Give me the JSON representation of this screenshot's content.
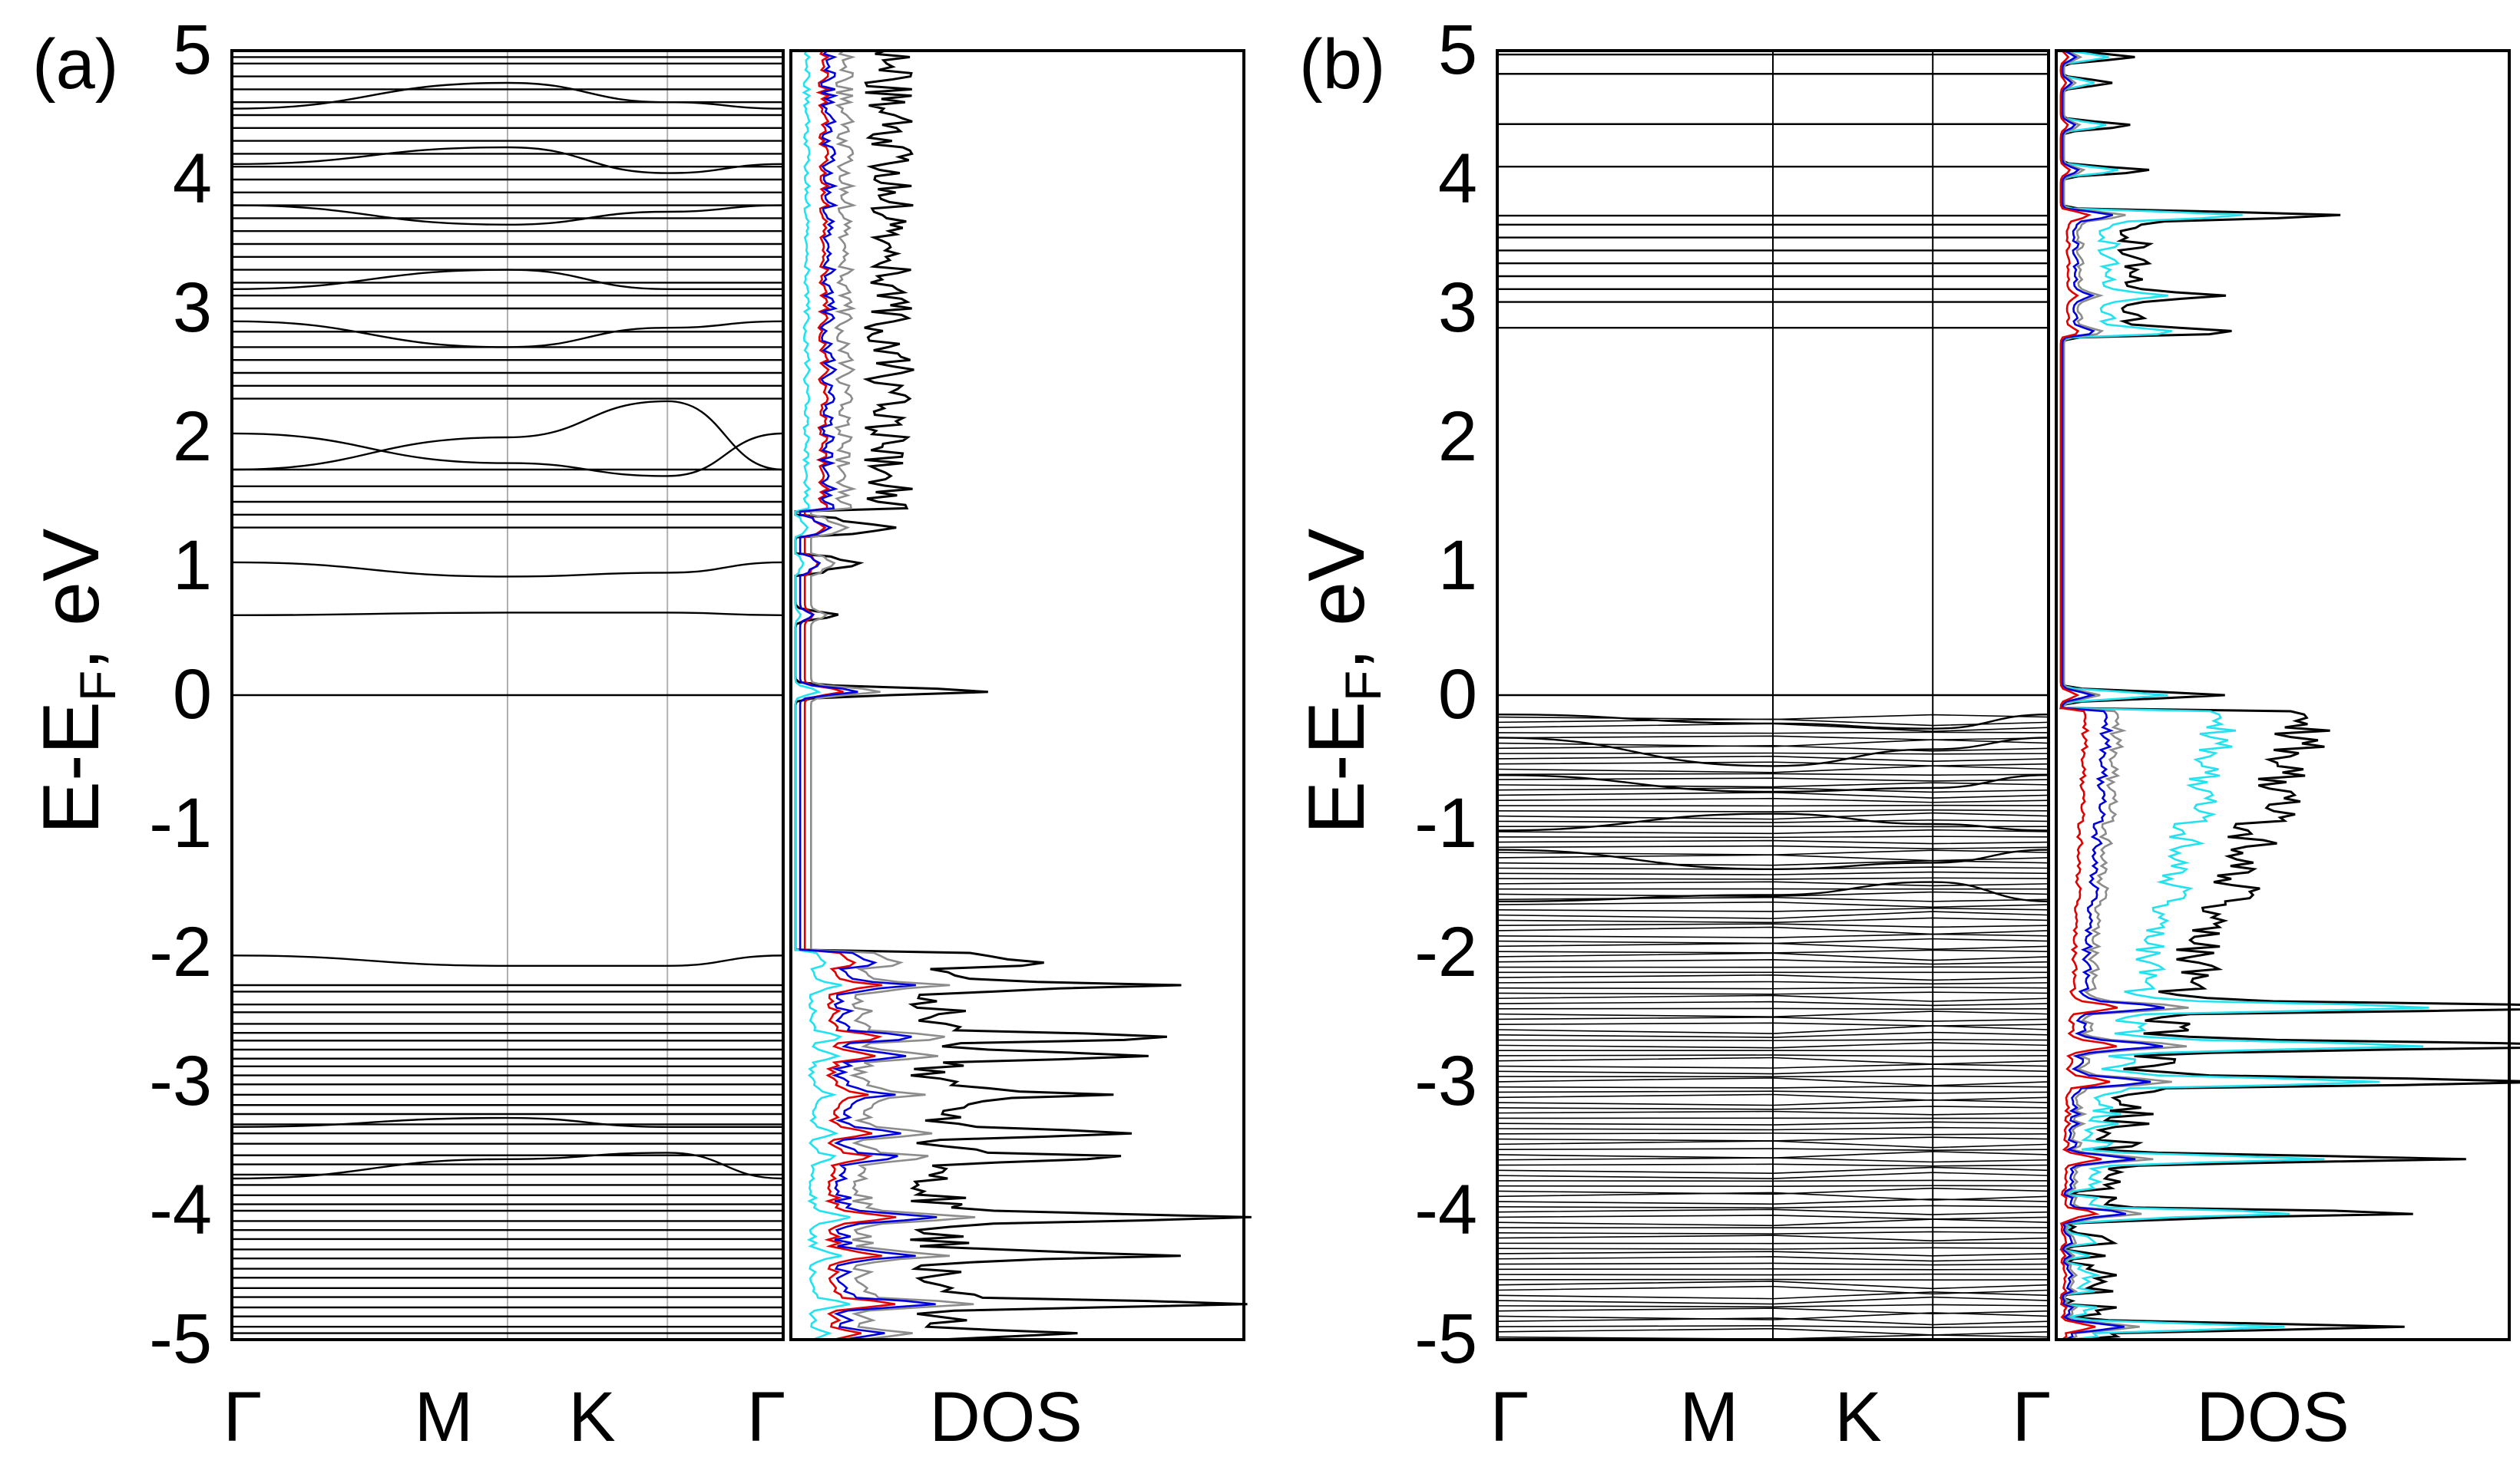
{
  "figure": {
    "colors": {
      "axis": "#000000",
      "band": "#000000",
      "kpath_line_a": "#b0b0b0",
      "kpath_line_b": "#000000",
      "dos_total": "#000000",
      "dos_gray": "#8c8c8c",
      "dos_cyan": "#22e2f0",
      "dos_red": "#e00000",
      "dos_blue": "#0000dd"
    }
  },
  "chart_data": [
    {
      "panel_label": "(a)",
      "type": "line",
      "subtype": "band-structure-with-dos",
      "ylabel": "E-E_F, eV",
      "ylim": [
        -5,
        5
      ],
      "yticks": [
        "5",
        "4",
        "3",
        "2",
        "1",
        "0",
        "-1",
        "-2",
        "-3",
        "-4",
        "-5"
      ],
      "kpath_labels": [
        "Γ",
        "M",
        "K",
        "Γ"
      ],
      "kpath_positions": [
        0,
        0.5,
        0.79,
        1.0
      ],
      "dos_label": "DOS",
      "fermi_level": 0,
      "bands_flat": [
        -4.95,
        -4.9,
        -4.82,
        -4.75,
        -4.67,
        -4.6,
        -4.52,
        -4.45,
        -4.37,
        -4.3,
        -4.22,
        -4.15,
        -4.08,
        -4.0,
        -3.95,
        -3.88,
        -3.8,
        -3.72,
        -3.64,
        -3.57,
        -3.48,
        -3.4,
        -3.33,
        -3.25,
        -3.18,
        -3.1,
        -3.02,
        -2.95,
        -2.88,
        -2.82,
        -2.75,
        -2.68,
        -2.62,
        -2.55,
        -2.46,
        -2.4,
        -2.3,
        -2.25,
        0.0,
        1.3,
        1.4,
        1.5,
        1.62,
        1.75,
        2.3,
        2.4,
        2.5,
        2.6,
        2.7,
        2.82,
        3.0,
        3.1,
        3.2,
        3.3,
        3.4,
        3.5,
        3.6,
        3.7,
        3.8,
        3.9,
        4.0,
        4.1,
        4.2,
        4.3,
        4.4,
        4.5,
        4.6,
        4.7,
        4.8,
        4.9,
        4.95
      ],
      "bands_dispersive": [
        {
          "gamma": -2.02,
          "m": -2.1,
          "k": -2.1
        },
        {
          "gamma": -3.35,
          "m": -3.28,
          "k": -3.35
        },
        {
          "gamma": -3.75,
          "m": -3.6,
          "k": -3.55
        },
        {
          "gamma": 0.62,
          "m": 0.64,
          "k": 0.64
        },
        {
          "gamma": 1.03,
          "m": 0.92,
          "k": 0.95
        },
        {
          "gamma": 2.03,
          "m": 1.8,
          "k": 1.7
        },
        {
          "gamma": 1.75,
          "m": 2.0,
          "k": 2.28
        },
        {
          "gamma": 2.9,
          "m": 2.7,
          "k": 2.85
        },
        {
          "gamma": 3.15,
          "m": 3.3,
          "k": 3.15
        },
        {
          "gamma": 3.8,
          "m": 3.65,
          "k": 3.75
        },
        {
          "gamma": 4.12,
          "m": 4.25,
          "k": 4.05
        },
        {
          "gamma": 4.55,
          "m": 4.75,
          "k": 4.6
        }
      ],
      "dos_max": 6.6,
      "dos_series": [
        {
          "name": "total",
          "color": "#000000",
          "offset": 0,
          "scale": 1.0
        },
        {
          "name": "gray",
          "color": "#8c8c8c",
          "offset": 0.5,
          "scale": 0.36
        },
        {
          "name": "cyan",
          "color": "#22e2f0",
          "offset": 0,
          "scale": 0.12
        },
        {
          "name": "red",
          "color": "#e00000",
          "offset": 0.3,
          "scale": 0.2
        },
        {
          "name": "blue",
          "color": "#0000dd",
          "offset": 0.15,
          "scale": 0.3
        }
      ],
      "dos_peaks": [
        {
          "e": 0.03,
          "v": 6.3
        },
        {
          "e": 0.62,
          "v": 1.4
        },
        {
          "e": 1.02,
          "v": 1.1
        },
        {
          "e": 1.3,
          "v": 1.8
        },
        {
          "e": -2.07,
          "v": 3.9
        },
        {
          "e": -2.25,
          "v": 6.8
        },
        {
          "e": -2.65,
          "v": 8.3
        },
        {
          "e": -2.8,
          "v": 7.6
        },
        {
          "e": -3.1,
          "v": 4.6
        },
        {
          "e": -3.4,
          "v": 5.8
        },
        {
          "e": -3.58,
          "v": 5.3
        },
        {
          "e": -4.05,
          "v": 9.7
        },
        {
          "e": -4.35,
          "v": 7.2
        },
        {
          "e": -4.72,
          "v": 9.8
        },
        {
          "e": -4.95,
          "v": 4.0
        }
      ],
      "dos_windows": [
        {
          "from": -5.0,
          "to": -1.98,
          "base": 3.6,
          "amp": 2.0
        },
        {
          "from": 0.95,
          "to": 1.08,
          "base": 0.8,
          "amp": 0.3
        },
        {
          "from": 1.25,
          "to": 1.4,
          "base": 1.2,
          "amp": 0.4
        },
        {
          "from": 1.45,
          "to": 5.0,
          "base": 2.2,
          "amp": 1.6
        }
      ]
    },
    {
      "panel_label": "(b)",
      "type": "line",
      "subtype": "band-structure-with-dos",
      "ylabel": "E-E_F, eV",
      "ylim": [
        -5,
        5
      ],
      "yticks": [
        "5",
        "4",
        "3",
        "2",
        "1",
        "0",
        "-1",
        "-2",
        "-3",
        "-4",
        "-5"
      ],
      "kpath_labels": [
        "Γ",
        "M",
        "K",
        "Γ"
      ],
      "kpath_positions": [
        0,
        0.5,
        0.79,
        1.0
      ],
      "dos_label": "DOS",
      "fermi_level": 0,
      "bands_flat": [
        0.0,
        2.85,
        3.05,
        3.15,
        3.25,
        3.35,
        3.45,
        3.55,
        3.65,
        3.72,
        4.1,
        4.43,
        4.82,
        4.97
      ],
      "bands_dispersive": [
        {
          "gamma": -0.15,
          "m": -0.22,
          "k": -0.26
        },
        {
          "gamma": -0.33,
          "m": -0.55,
          "k": -0.42
        },
        {
          "gamma": -0.62,
          "m": -0.75,
          "k": -0.72
        },
        {
          "gamma": -1.05,
          "m": -0.92,
          "k": -1.0
        },
        {
          "gamma": -1.2,
          "m": -1.35,
          "k": -1.3
        },
        {
          "gamma": -1.6,
          "m": -1.55,
          "k": -1.45
        }
      ],
      "bands_dense_range": [
        -5.0,
        -0.15
      ],
      "bands_dense_count": 120,
      "dos_max": 6.4,
      "dos_series": [
        {
          "name": "total",
          "color": "#000000",
          "offset": 0,
          "scale": 1.0
        },
        {
          "name": "cyan",
          "color": "#22e2f0",
          "offset": 0,
          "scale": 0.65
        },
        {
          "name": "gray",
          "color": "#8c8c8c",
          "offset": 0.1,
          "scale": 0.22
        },
        {
          "name": "blue",
          "color": "#0000dd",
          "offset": 0.05,
          "scale": 0.18
        },
        {
          "name": "red",
          "color": "#e00000",
          "offset": 0,
          "scale": 0.1
        }
      ],
      "dos_peaks": [
        {
          "e": 0.0,
          "v": 5.1
        },
        {
          "e": 2.82,
          "v": 3.0
        },
        {
          "e": 3.1,
          "v": 2.9
        },
        {
          "e": 3.72,
          "v": 6.4
        },
        {
          "e": 4.07,
          "v": 2.8
        },
        {
          "e": 4.42,
          "v": 2.2
        },
        {
          "e": 4.75,
          "v": 1.6
        },
        {
          "e": 4.95,
          "v": 2.3
        },
        {
          "e": -2.42,
          "v": 14.6
        },
        {
          "e": -2.72,
          "v": 14.2
        },
        {
          "e": -3.0,
          "v": 12.5
        },
        {
          "e": -3.6,
          "v": 10.6
        },
        {
          "e": -4.02,
          "v": 10.8
        },
        {
          "e": -4.9,
          "v": 10.0
        }
      ],
      "dos_windows": [
        {
          "from": -5.0,
          "to": -0.1,
          "base": -1,
          "amp": 1.8
        },
        {
          "from": 2.8,
          "to": 3.75,
          "base": 1.8,
          "amp": 1.0
        }
      ]
    }
  ]
}
